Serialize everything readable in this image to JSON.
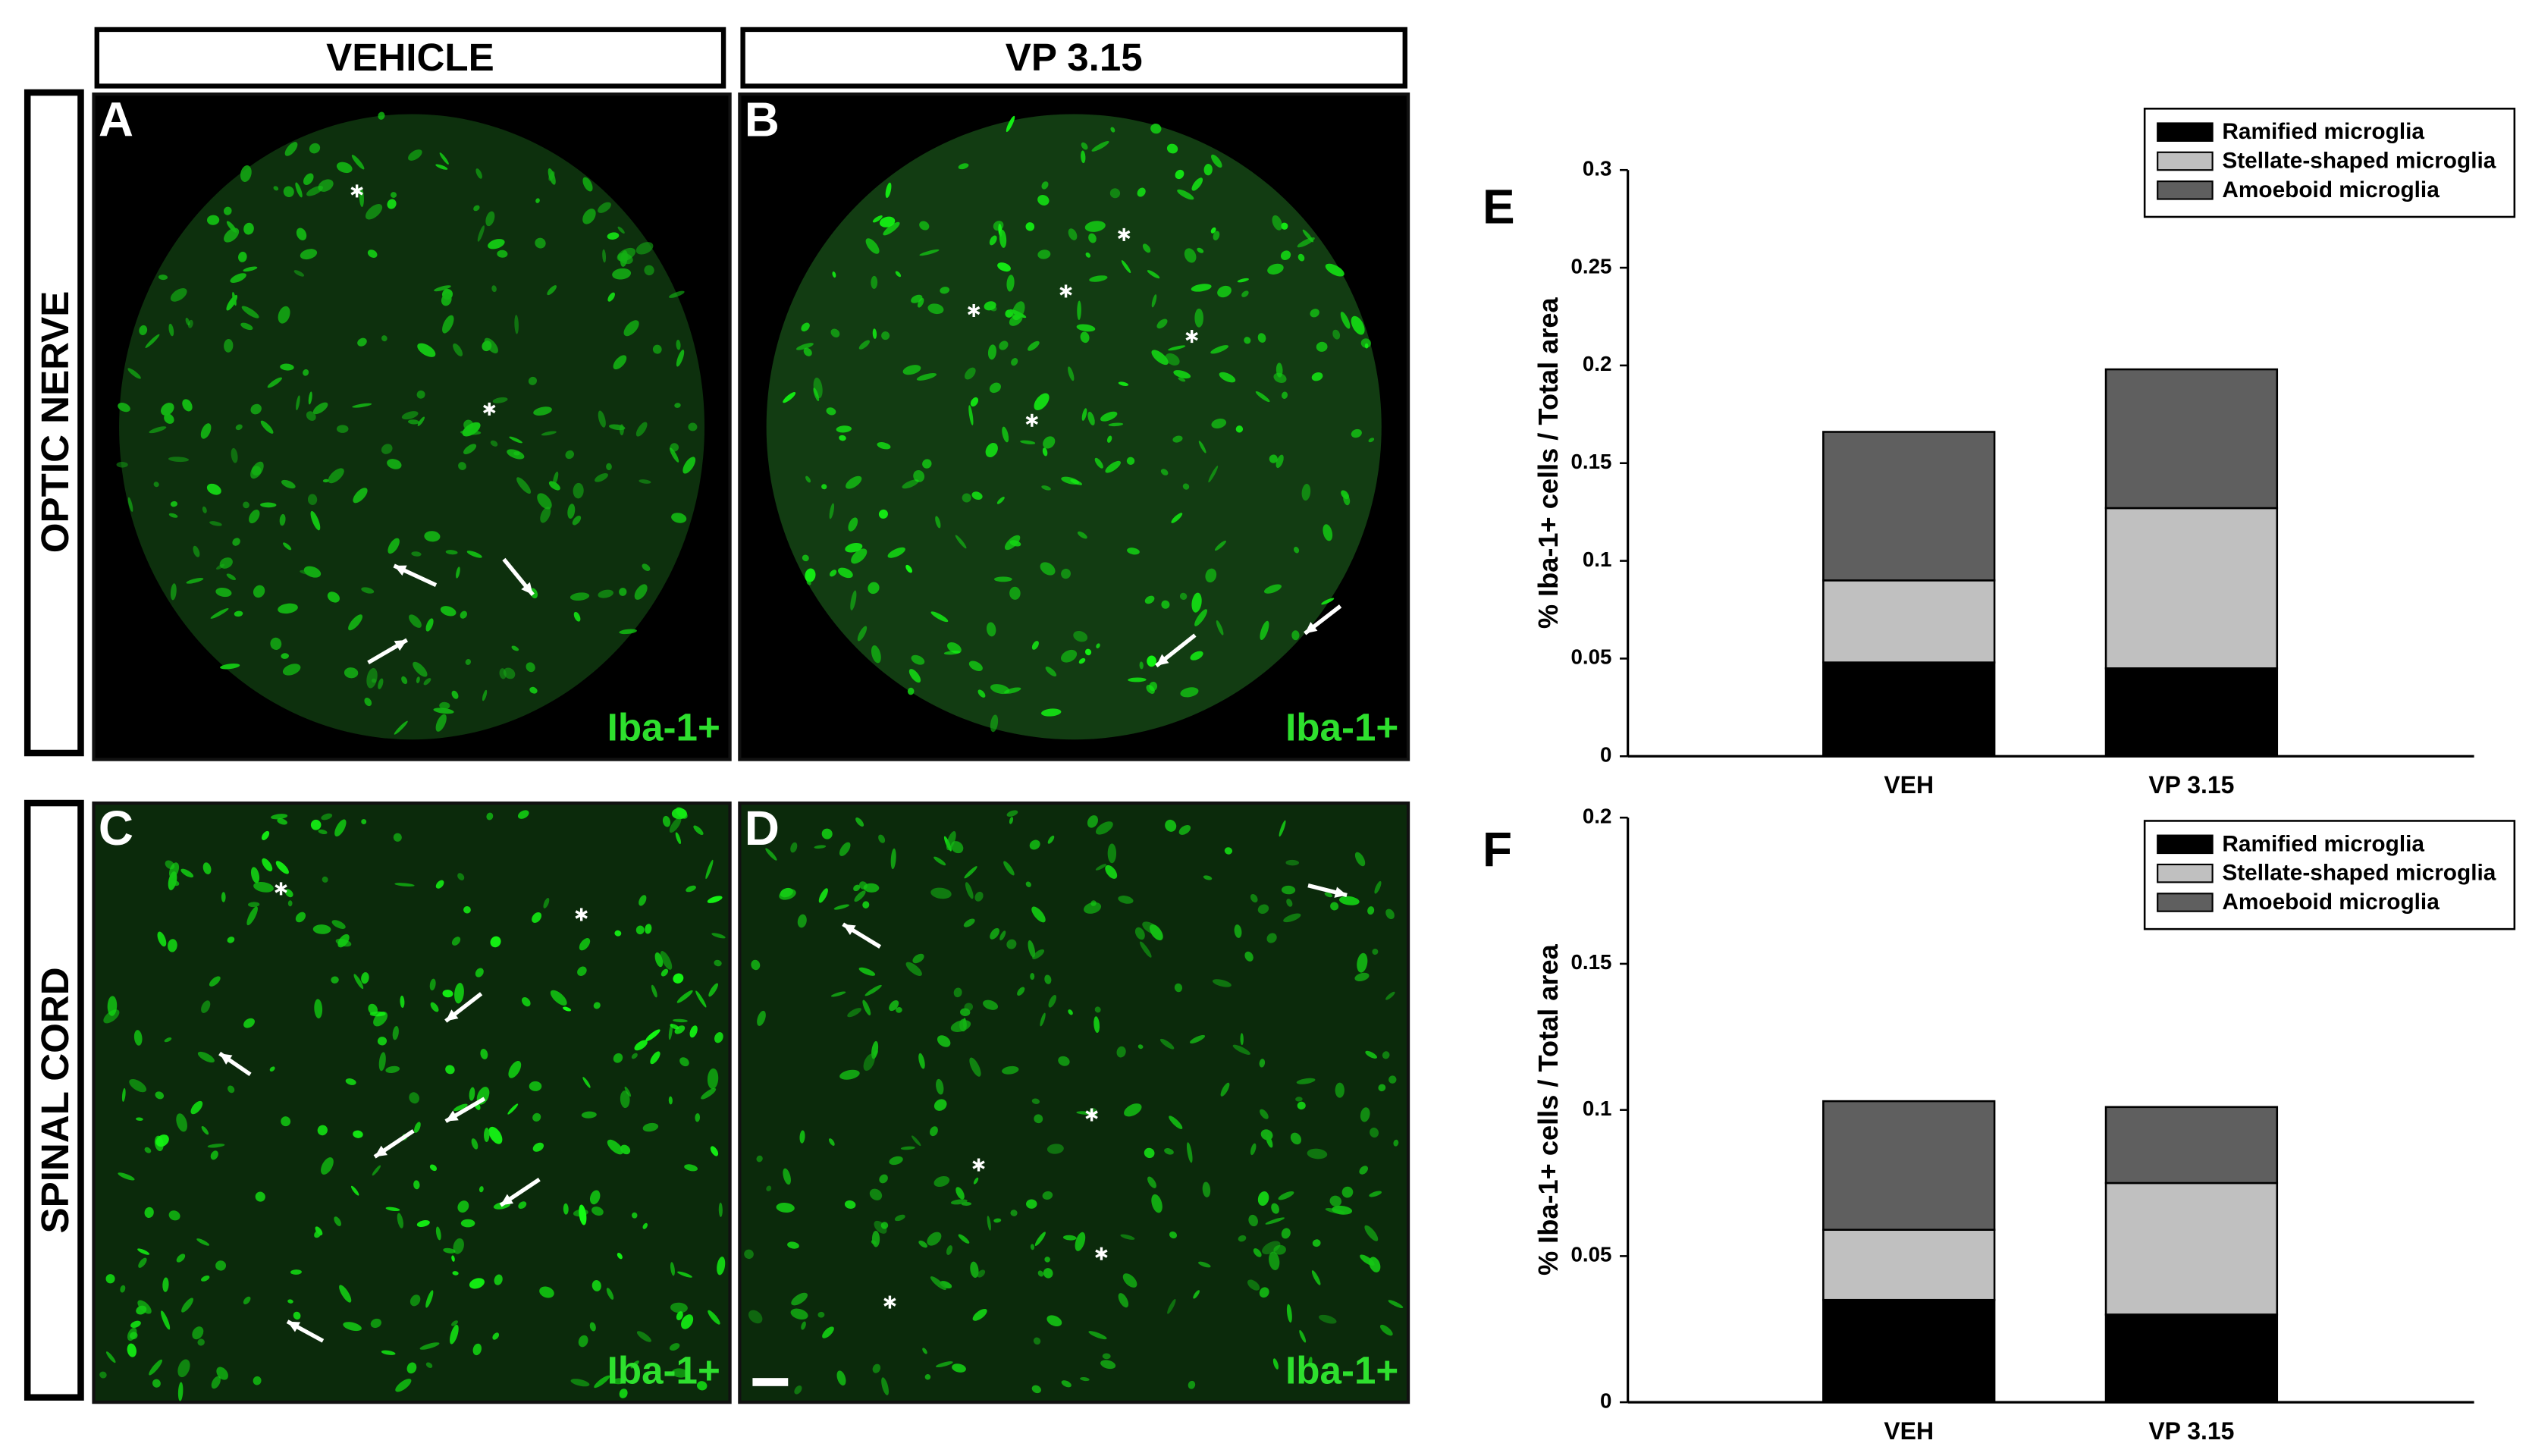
{
  "columns": [
    "VEHICLE",
    "VP 3.15"
  ],
  "rows": [
    "OPTIC NERVE",
    "SPINAL CORD"
  ],
  "panels": [
    {
      "letter": "A",
      "stain": "Iba-1+"
    },
    {
      "letter": "B",
      "stain": "Iba-1+"
    },
    {
      "letter": "C",
      "stain": "Iba-1+"
    },
    {
      "letter": "D",
      "stain": "Iba-1+"
    }
  ],
  "chart_data": [
    {
      "type": "bar",
      "stacked": true,
      "panel_label": "E",
      "ylabel": "% Iba-1+ cells / Total area",
      "categories": [
        "VEH",
        "VP 3.15"
      ],
      "series": [
        {
          "name": "Ramified microglia",
          "color": "#000000",
          "values": [
            0.048,
            0.045
          ]
        },
        {
          "name": "Stellate-shaped microglia",
          "color": "#c0c0c0",
          "values": [
            0.042,
            0.082
          ]
        },
        {
          "name": "Amoeboid microglia",
          "color": "#5f5f5f",
          "values": [
            0.076,
            0.071
          ]
        }
      ],
      "ylim": [
        0,
        0.3
      ],
      "yticks": [
        0,
        0.05,
        0.1,
        0.15,
        0.2,
        0.25,
        0.3
      ],
      "legend": "upper right"
    },
    {
      "type": "bar",
      "stacked": true,
      "panel_label": "F",
      "ylabel": "% Iba-1+ cells / Total area",
      "categories": [
        "VEH",
        "VP 3.15"
      ],
      "series": [
        {
          "name": "Ramified microglia",
          "color": "#000000",
          "values": [
            0.035,
            0.03
          ]
        },
        {
          "name": "Stellate-shaped microglia",
          "color": "#c0c0c0",
          "values": [
            0.024,
            0.045
          ]
        },
        {
          "name": "Amoeboid microglia",
          "color": "#5f5f5f",
          "values": [
            0.044,
            0.026
          ]
        }
      ],
      "ylim": [
        0,
        0.2
      ],
      "yticks": [
        0,
        0.05,
        0.1,
        0.15,
        0.2
      ],
      "legend": "upper right"
    }
  ]
}
